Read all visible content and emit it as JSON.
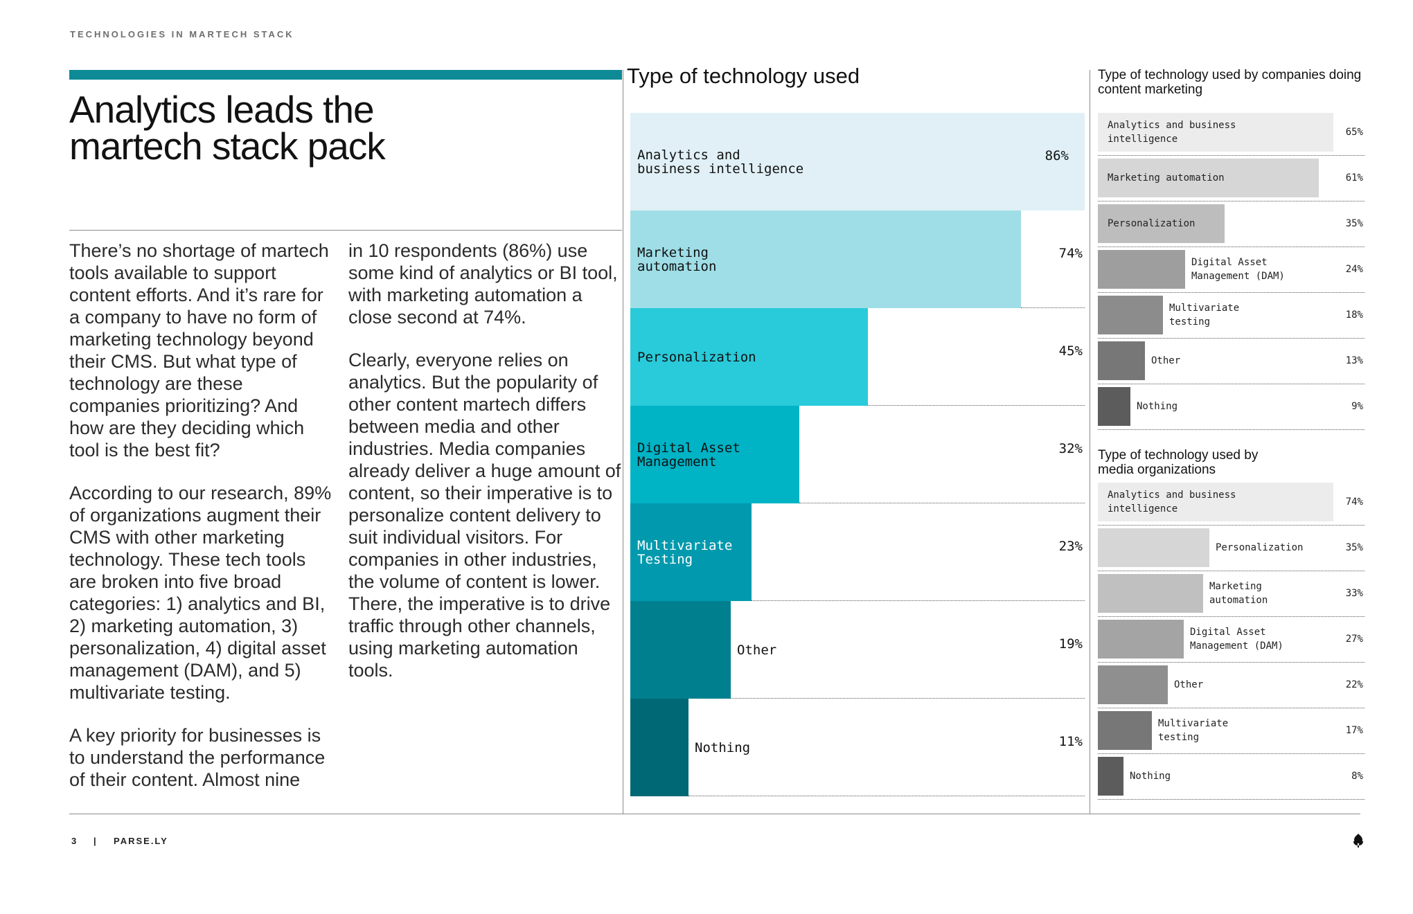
{
  "section_label": "TECHNOLOGIES IN MARTECH STACK",
  "headline": "Analytics leads the martech stack pack",
  "body": {
    "col1": [
      "There’s no shortage of martech tools available to support content efforts. And it’s rare for a company to have no form of marketing technology beyond their CMS. But what type of technology are these companies prioritizing? And how are they deciding which tool is the best fit?",
      "According to our research, 89% of organizations augment their CMS with other marketing technology. These tech tools are broken into five broad categories: 1) analytics and BI, 2) marketing automation, 3) personalization, 4) digital asset management (DAM), and 5) multivariate testing.",
      "A key priority for businesses is to understand the performance of their content. Almost nine"
    ],
    "col2": [
      "in 10 respondents (86%) use some kind of analytics or BI tool, with marketing automation a close second at 74%.",
      "Clearly, everyone relies on analytics. But the popularity of other content martech differs between media and other industries. Media companies already deliver a huge amount of content, so their imperative is to personalize content delivery to suit individual visitors. For companies in other industries, the volume of content is lower. There, the imperative is to drive traffic through other channels, using marketing automation tools."
    ]
  },
  "footer": {
    "page_number": "3",
    "separator": "|",
    "brand": "PARSE.LY",
    "logo_icon": "parsely-leaf-icon"
  },
  "colors": {
    "accent": "#0e8a96",
    "main_bars": [
      "#e0f0f6",
      "#9fdee7",
      "#29cad9",
      "#00b3c5",
      "#0099ad",
      "#00808f",
      "#006875"
    ],
    "small_bars_content": [
      "#ececec",
      "#d6d6d6",
      "#bdbdbd",
      "#9e9e9e",
      "#8c8c8c",
      "#777777",
      "#5c5c5c"
    ],
    "small_bars_media": [
      "#ececec",
      "#d6d6d6",
      "#c0c0c0",
      "#a4a4a4",
      "#8f8f8f",
      "#777777",
      "#5c5c5c"
    ]
  },
  "chart_data": [
    {
      "type": "bar",
      "orientation": "horizontal",
      "title": "Type of technology used",
      "categories": [
        "Analytics and\nbusiness intelligence",
        "Marketing\nautomation",
        "Personalization",
        "Digital Asset\nManagement",
        "Multivariate\nTesting",
        "Other",
        "Nothing"
      ],
      "values": [
        86,
        74,
        45,
        32,
        23,
        19,
        11
      ],
      "value_labels": [
        "86%",
        "74%",
        "45%",
        "32%",
        "23%",
        "19%",
        "11%"
      ],
      "xlim": [
        0,
        100
      ],
      "unit": "%"
    },
    {
      "type": "bar",
      "orientation": "horizontal",
      "title": "Type of technology used by companies doing content marketing",
      "categories": [
        "Analytics and business\nintelligence",
        "Marketing automation",
        "Personalization",
        "Digital Asset\nManagement (DAM)",
        "Multivariate\ntesting",
        "Other",
        "Nothing"
      ],
      "values": [
        65,
        61,
        35,
        24,
        18,
        13,
        9
      ],
      "value_labels": [
        "65%",
        "61%",
        "35%",
        "24%",
        "18%",
        "13%",
        "9%"
      ],
      "xlim": [
        0,
        70
      ],
      "unit": "%"
    },
    {
      "type": "bar",
      "orientation": "horizontal",
      "title": "Type of technology used by media organizations",
      "categories": [
        "Analytics and business\nintelligence",
        "Personalization",
        "Marketing\nautomation",
        "Digital Asset\nManagement (DAM)",
        "Other",
        "Multivariate\ntesting",
        "Nothing"
      ],
      "values": [
        74,
        35,
        33,
        27,
        22,
        17,
        8
      ],
      "value_labels": [
        "74%",
        "35%",
        "33%",
        "27%",
        "22%",
        "17%",
        "8%"
      ],
      "xlim": [
        0,
        79
      ],
      "unit": "%"
    }
  ]
}
